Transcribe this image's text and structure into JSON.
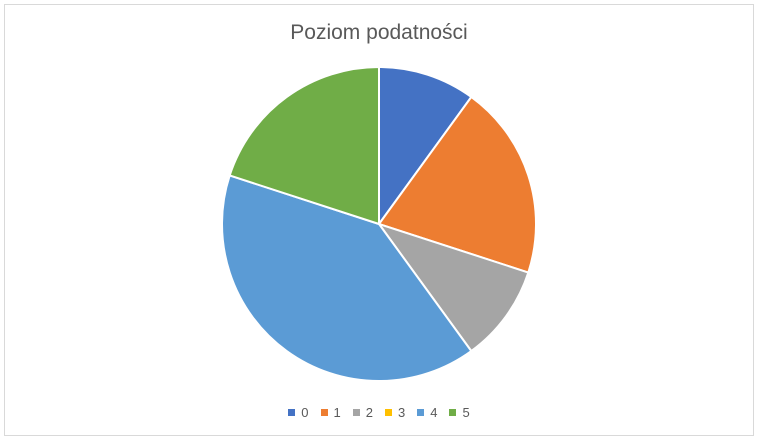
{
  "chart_data": {
    "type": "pie",
    "title": "Poziom podatności",
    "categories": [
      "0",
      "1",
      "2",
      "3",
      "4",
      "5"
    ],
    "values": [
      1,
      2,
      1,
      0,
      4,
      2
    ],
    "colors": [
      "#4472c4",
      "#ed7d31",
      "#a5a5a5",
      "#ffc000",
      "#5b9bd5",
      "#70ad47"
    ],
    "start_angle": "top",
    "direction": "clockwise",
    "legend_position": "bottom"
  }
}
